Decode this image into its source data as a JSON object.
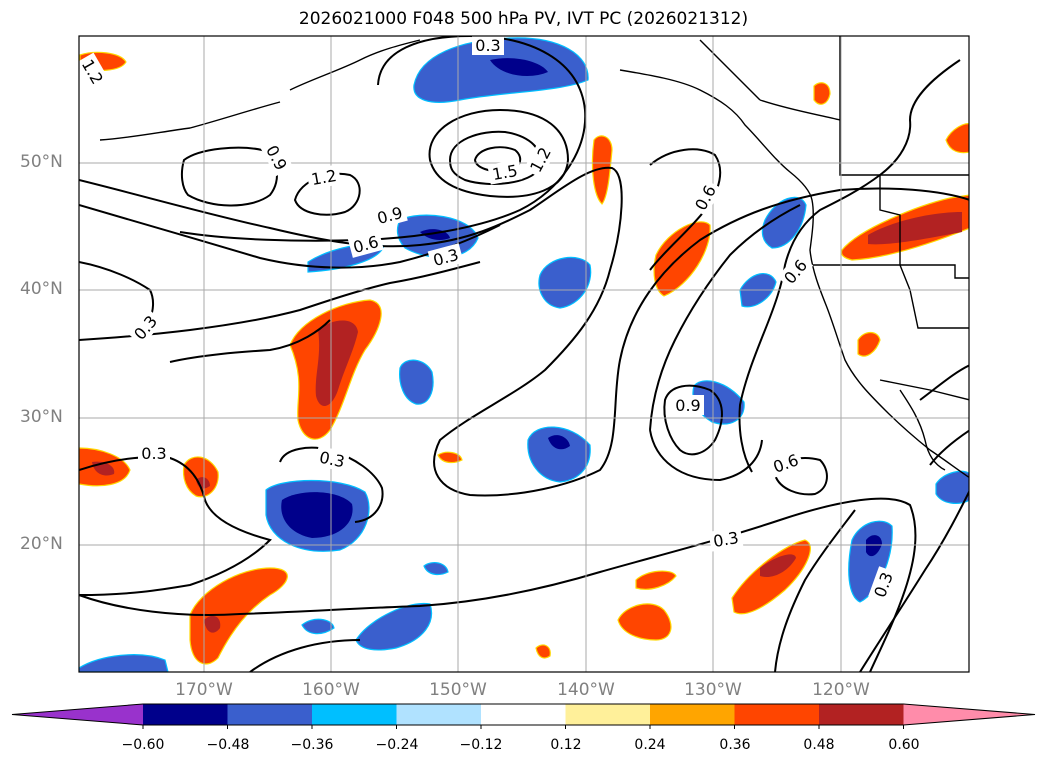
{
  "title": "2026021000 F048 500 hPa PV, IVT PC (2026021312)",
  "axes": {
    "lat_ticks": [
      "50°N",
      "40°N",
      "30°N",
      "20°N"
    ],
    "lon_ticks": [
      "170°W",
      "160°W",
      "150°W",
      "140°W",
      "130°W",
      "120°W"
    ]
  },
  "contour_labels": [
    "1.2",
    "0.3",
    "0.9",
    "1.2",
    "1.5",
    "1.2",
    "0.9",
    "0.6",
    "0.3",
    "0.6",
    "0.6",
    "0.3",
    "0.9",
    "0.3",
    "0.3",
    "0.6",
    "0.3",
    "0.3"
  ],
  "colorbar": {
    "labels": [
      "−0.60",
      "−0.48",
      "−0.36",
      "−0.24",
      "−0.12",
      "0.12",
      "0.24",
      "0.36",
      "0.48",
      "0.60"
    ],
    "colors": [
      "#9932cc",
      "#00008b",
      "#3a5fcd",
      "#00bfff",
      "#b0e2ff",
      "#ffffff",
      "#fff09a",
      "#ffa500",
      "#ff4500",
      "#b22222",
      "#ff8caa"
    ]
  }
}
